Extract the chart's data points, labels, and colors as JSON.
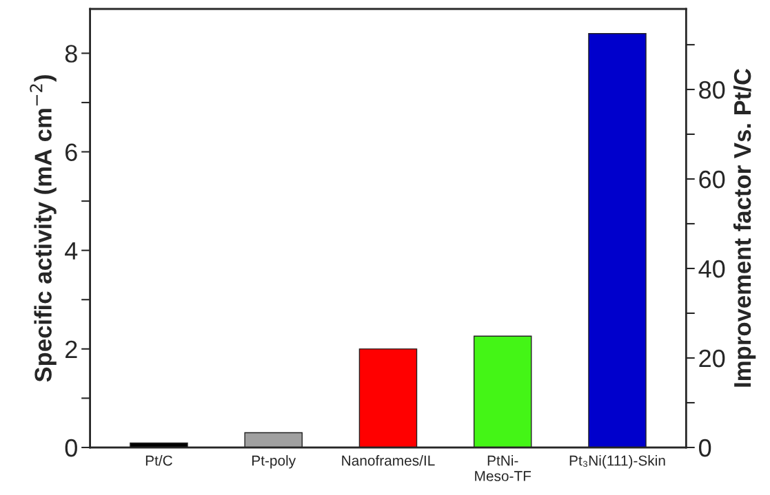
{
  "chart_data": {
    "type": "bar",
    "categories": [
      "Pt/C",
      "Pt-poly",
      "Nanoframes/IL",
      "PtNi-\nMeso-TF",
      "Pt₃Ni(111)-Skin"
    ],
    "values": [
      0.09,
      0.3,
      2.0,
      2.26,
      8.4
    ],
    "colors": [
      "#000000",
      "#a0a0a0",
      "#ff0000",
      "#44f516",
      "#0000cc"
    ],
    "ylabel": "Specific activity (mA cm$^{−2}$)",
    "y2label": "Improvement factor Vs. Pt/C",
    "ylim": [
      0,
      8.9
    ],
    "yticks": [
      0,
      {
        "value": 1,
        "label": null
      },
      2,
      {
        "value": 3,
        "label": null
      },
      4,
      {
        "value": 5,
        "label": null
      },
      6,
      {
        "value": 7,
        "label": null
      },
      8
    ],
    "y2lim": [
      0,
      98
    ],
    "y2ticks": [
      0,
      {
        "value": 10,
        "label": null
      },
      20,
      {
        "value": 30,
        "label": null
      },
      40,
      {
        "value": 50,
        "label": null
      },
      60,
      {
        "value": 70,
        "label": null
      },
      80,
      {
        "value": 90,
        "label": null
      }
    ],
    "grid": false,
    "legend": false
  }
}
